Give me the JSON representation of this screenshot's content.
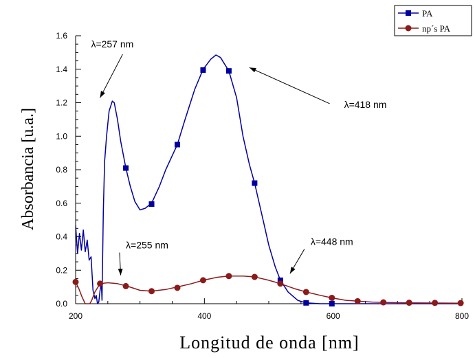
{
  "chart_data": {
    "type": "line",
    "title": "",
    "xlabel": "Longitud de onda [nm]",
    "ylabel": "Absorbancia [u.a.]",
    "xlim": [
      200,
      800
    ],
    "ylim": [
      0,
      1.6
    ],
    "x_ticks": [
      200,
      400,
      600,
      800
    ],
    "x_tick_labels": [
      "200",
      "400",
      "600",
      "800"
    ],
    "y_ticks": [
      0,
      0.2,
      0.4,
      0.6,
      0.8,
      1.0,
      1.2,
      1.4,
      1.6
    ],
    "y_tick_labels": [
      "0.0",
      "0.2",
      "0.4",
      "0.6",
      "0.8",
      "1.0",
      "1.2",
      "1.4",
      "1.6"
    ],
    "grid": false,
    "legend_position": "top-right",
    "series": [
      {
        "name": "PA",
        "color": "#0000a0",
        "marker": "square",
        "line": [
          [
            200,
            0.47
          ],
          [
            203,
            0.3
          ],
          [
            206,
            0.42
          ],
          [
            209,
            0.32
          ],
          [
            212,
            0.44
          ],
          [
            215,
            0.31
          ],
          [
            218,
            0.38
          ],
          [
            221,
            0.26
          ],
          [
            224,
            0.28
          ],
          [
            227,
            0.08
          ],
          [
            230,
            0.03
          ],
          [
            232,
            0.05
          ],
          [
            234,
            0.0
          ],
          [
            236,
            0.01
          ],
          [
            238,
            0.08
          ],
          [
            240,
            0.12
          ],
          [
            241,
            0.02
          ],
          [
            243,
            0.55
          ],
          [
            245,
            0.85
          ],
          [
            248,
            1.0
          ],
          [
            252,
            1.15
          ],
          [
            257,
            1.21
          ],
          [
            260,
            1.2
          ],
          [
            265,
            1.1
          ],
          [
            270,
            0.97
          ],
          [
            278,
            0.81
          ],
          [
            285,
            0.7
          ],
          [
            292,
            0.61
          ],
          [
            300,
            0.56
          ],
          [
            308,
            0.57
          ],
          [
            318,
            0.6
          ],
          [
            330,
            0.7
          ],
          [
            340,
            0.8
          ],
          [
            358,
            0.95
          ],
          [
            370,
            1.1
          ],
          [
            385,
            1.28
          ],
          [
            398,
            1.4
          ],
          [
            410,
            1.46
          ],
          [
            418,
            1.485
          ],
          [
            425,
            1.47
          ],
          [
            438,
            1.39
          ],
          [
            450,
            1.23
          ],
          [
            460,
            1.0
          ],
          [
            470,
            0.83
          ],
          [
            478,
            0.72
          ],
          [
            490,
            0.52
          ],
          [
            500,
            0.35
          ],
          [
            510,
            0.22
          ],
          [
            518,
            0.14
          ],
          [
            530,
            0.07
          ],
          [
            545,
            0.02
          ],
          [
            558,
            0.005
          ],
          [
            580,
            0.0
          ],
          [
            600,
            0.0
          ],
          [
            700,
            0.0
          ],
          [
            800,
            0.0
          ]
        ],
        "markers": [
          [
            278,
            0.81
          ],
          [
            318,
            0.595
          ],
          [
            358,
            0.95
          ],
          [
            398,
            1.395
          ],
          [
            438,
            1.39
          ],
          [
            478,
            0.72
          ],
          [
            518,
            0.14
          ],
          [
            558,
            0.005
          ],
          [
            598,
            0.0
          ]
        ]
      },
      {
        "name": "np´s PA",
        "color": "#8b1a1a",
        "marker": "circle",
        "line": [
          [
            200,
            0.13
          ],
          [
            205,
            0.09
          ],
          [
            210,
            0.04
          ],
          [
            215,
            0.0
          ],
          [
            218,
            0.0
          ],
          [
            222,
            0.0
          ],
          [
            225,
            0.02
          ],
          [
            230,
            0.07
          ],
          [
            238,
            0.12
          ],
          [
            250,
            0.125
          ],
          [
            265,
            0.12
          ],
          [
            280,
            0.105
          ],
          [
            300,
            0.08
          ],
          [
            318,
            0.075
          ],
          [
            340,
            0.085
          ],
          [
            358,
            0.1
          ],
          [
            380,
            0.12
          ],
          [
            398,
            0.14
          ],
          [
            420,
            0.158
          ],
          [
            438,
            0.165
          ],
          [
            460,
            0.165
          ],
          [
            478,
            0.16
          ],
          [
            500,
            0.14
          ],
          [
            518,
            0.12
          ],
          [
            540,
            0.09
          ],
          [
            558,
            0.07
          ],
          [
            580,
            0.05
          ],
          [
            598,
            0.035
          ],
          [
            620,
            0.02
          ],
          [
            638,
            0.015
          ],
          [
            660,
            0.01
          ],
          [
            678,
            0.008
          ],
          [
            700,
            0.006
          ],
          [
            720,
            0.005
          ],
          [
            760,
            0.004
          ],
          [
            800,
            0.003
          ]
        ],
        "markers": [
          [
            200,
            0.13
          ],
          [
            238,
            0.12
          ],
          [
            278,
            0.105
          ],
          [
            318,
            0.075
          ],
          [
            358,
            0.095
          ],
          [
            398,
            0.14
          ],
          [
            438,
            0.165
          ],
          [
            478,
            0.16
          ],
          [
            518,
            0.12
          ],
          [
            558,
            0.07
          ],
          [
            598,
            0.035
          ],
          [
            638,
            0.015
          ],
          [
            678,
            0.008
          ],
          [
            718,
            0.006
          ],
          [
            758,
            0.005
          ],
          [
            798,
            0.004
          ]
        ]
      }
    ],
    "annotations": [
      {
        "id": "a257",
        "text": "λ=257 nm",
        "x": 257,
        "y": 1.53,
        "arrow_to": [
          238,
          1.23
        ]
      },
      {
        "id": "a418",
        "text": "λ=418 nm",
        "x": 650,
        "y": 1.17,
        "arrow_to": [
          470,
          1.41
        ]
      },
      {
        "id": "a255",
        "text": "λ=255 nm",
        "x": 311,
        "y": 0.33,
        "arrow_to": [
          270,
          0.17
        ]
      },
      {
        "id": "a448",
        "text": "λ=448 nm",
        "x": 598,
        "y": 0.35,
        "arrow_to": [
          533,
          0.18
        ]
      }
    ]
  }
}
